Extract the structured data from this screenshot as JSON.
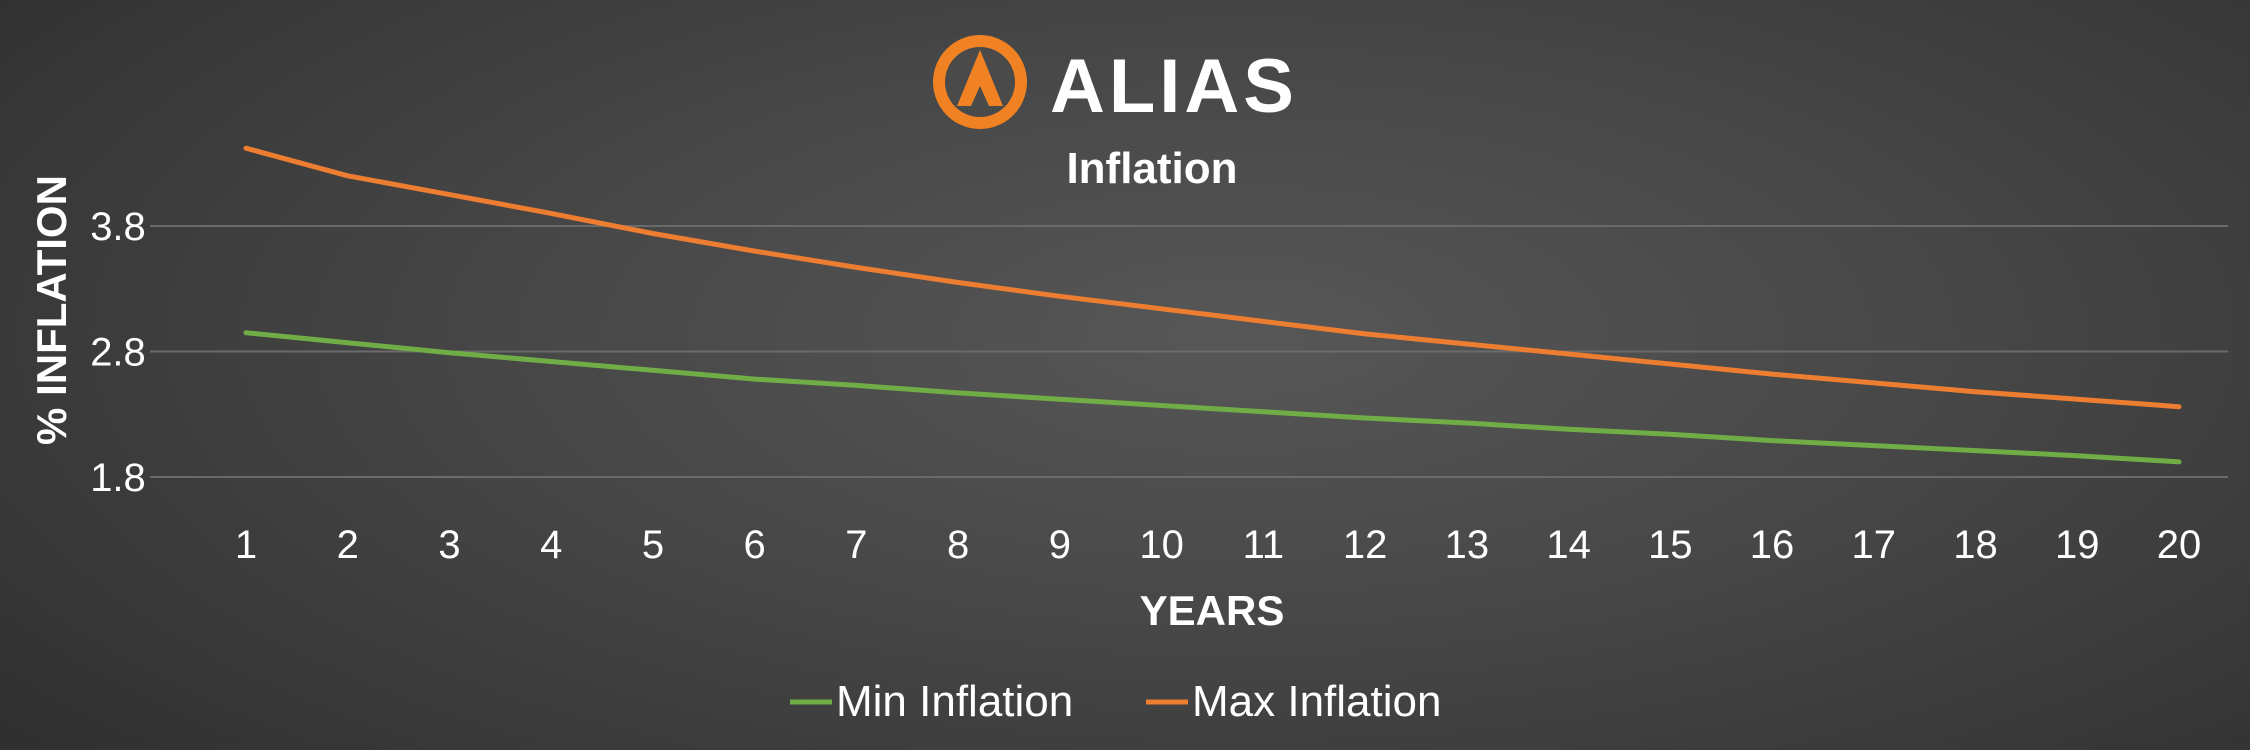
{
  "logo": {
    "text": "ALIAS",
    "accent_color": "#F08224"
  },
  "chart_data": {
    "type": "line",
    "title": "Inflation",
    "xlabel": "YEARS",
    "ylabel": "% INFLATION",
    "x": [
      1,
      2,
      3,
      4,
      5,
      6,
      7,
      8,
      9,
      10,
      11,
      12,
      13,
      14,
      15,
      16,
      17,
      18,
      19,
      20
    ],
    "ylim": [
      1.8,
      4.4
    ],
    "yticks": [
      1.8,
      2.8,
      3.8
    ],
    "grid": true,
    "legend_position": "bottom",
    "series": [
      {
        "name": "Min Inflation",
        "color": "#70AD47",
        "values": [
          2.95,
          2.87,
          2.79,
          2.72,
          2.65,
          2.58,
          2.53,
          2.47,
          2.42,
          2.37,
          2.32,
          2.27,
          2.23,
          2.18,
          2.14,
          2.09,
          2.05,
          2.01,
          1.97,
          1.92
        ]
      },
      {
        "name": "Max Inflation",
        "color": "#ED7D31",
        "values": [
          4.42,
          4.2,
          4.05,
          3.9,
          3.74,
          3.6,
          3.47,
          3.35,
          3.24,
          3.14,
          3.04,
          2.94,
          2.86,
          2.78,
          2.7,
          2.62,
          2.55,
          2.48,
          2.42,
          2.36
        ]
      }
    ]
  }
}
